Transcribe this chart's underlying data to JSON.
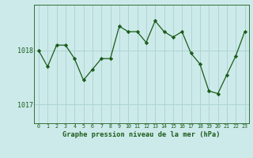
{
  "x": [
    0,
    1,
    2,
    3,
    4,
    5,
    6,
    7,
    8,
    9,
    10,
    11,
    12,
    13,
    14,
    15,
    16,
    17,
    18,
    19,
    20,
    21,
    22,
    23
  ],
  "y": [
    1018.0,
    1017.7,
    1018.1,
    1018.1,
    1017.85,
    1017.45,
    1017.65,
    1017.85,
    1017.85,
    1018.45,
    1018.35,
    1018.35,
    1018.15,
    1018.55,
    1018.35,
    1018.25,
    1018.35,
    1017.95,
    1017.75,
    1017.25,
    1017.2,
    1017.55,
    1017.9,
    1018.35
  ],
  "bg_color": "#cdeaea",
  "line_color": "#1a5c1a",
  "marker_color": "#1a5c1a",
  "grid_color": "#aed4d4",
  "axis_label_color": "#1a5c1a",
  "ylabel_ticks": [
    1017,
    1018
  ],
  "xlabel": "Graphe pression niveau de la mer (hPa)",
  "ytick_labels": [
    "1017",
    "1018"
  ],
  "xlim": [
    -0.5,
    23.5
  ],
  "ylim": [
    1016.65,
    1018.85
  ],
  "title": ""
}
